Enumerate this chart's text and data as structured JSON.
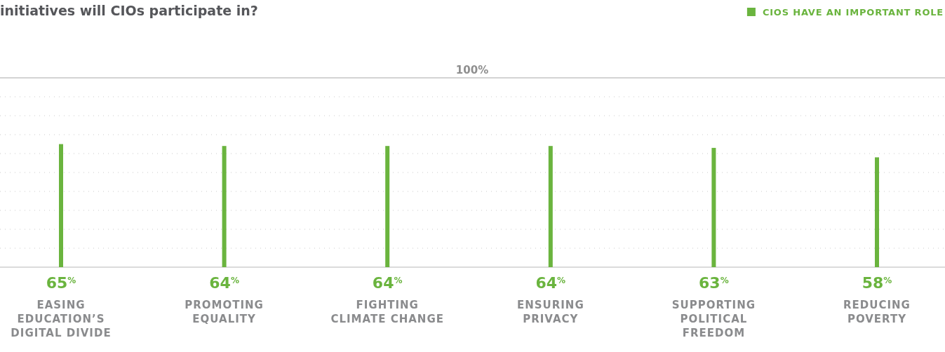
{
  "chart_data": {
    "type": "bar",
    "title": "initiatives will CIOs participate in?",
    "categories": [
      "EASING EDUCATION’S DIGITAL DIVIDE",
      "PROMOTING EQUALITY",
      "FIGHTING CLIMATE CHANGE",
      "ENSURING PRIVACY",
      "SUPPORTING POLITICAL FREEDOM",
      "REDUCING POVERTY"
    ],
    "series": [
      {
        "name": "CIOS HAVE AN IMPORTANT ROLE",
        "color": "#6ab43e",
        "values": [
          65,
          64,
          64,
          64,
          63,
          58
        ],
        "value_labels": [
          "65$^{%}$",
          "64$^{%}$",
          "64$^{%}$",
          "64$^{%}$",
          "63$^{%}$",
          "58$^{%}$"
        ]
      }
    ],
    "ylim": [
      0,
      100
    ],
    "yticks": [
      {
        "value": 0,
        "label": null
      },
      {
        "value": 10,
        "label": null
      },
      {
        "value": 20,
        "label": null
      },
      {
        "value": 30,
        "label": null
      },
      {
        "value": 40,
        "label": null
      },
      {
        "value": 50,
        "label": null
      },
      {
        "value": 60,
        "label": null
      },
      {
        "value": 70,
        "label": null
      },
      {
        "value": 80,
        "label": null
      },
      {
        "value": 90,
        "label": null
      }
    ],
    "ref_lines": [
      {
        "axis": "y",
        "value": 100,
        "label": "100%",
        "color": "#c4c4c4",
        "line_style": "solid"
      }
    ],
    "grid": "y",
    "legend": "top right"
  }
}
